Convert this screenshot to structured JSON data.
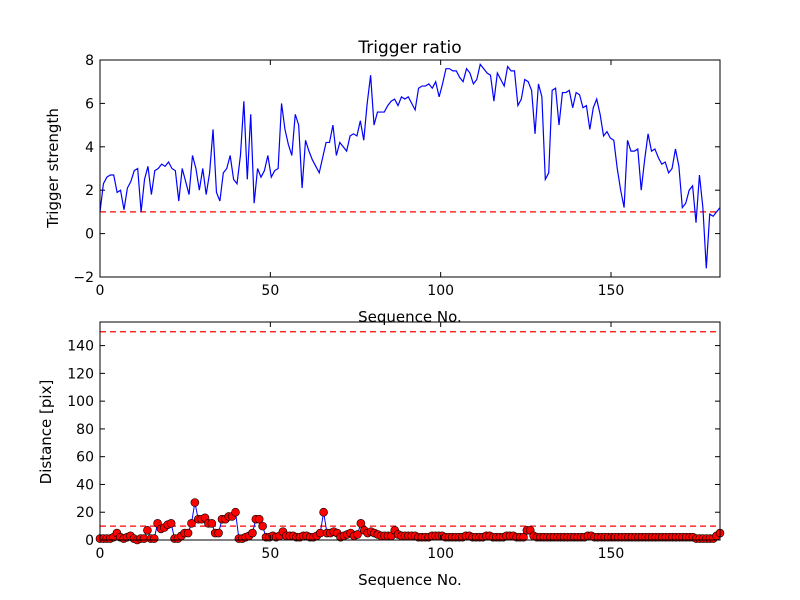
{
  "chart_data": [
    {
      "type": "line",
      "title": "Trigger ratio",
      "xlabel": "Sequence No.",
      "ylabel": "Trigger strength",
      "xlim": [
        0,
        182
      ],
      "ylim": [
        -2,
        8
      ],
      "xticks": [
        "0",
        "50",
        "100",
        "150"
      ],
      "yticks": [
        "−2",
        "0",
        "2",
        "4",
        "6",
        "8"
      ],
      "xtick_values": [
        0,
        50,
        100,
        150
      ],
      "ytick_values": [
        -2,
        0,
        2,
        4,
        6,
        8
      ],
      "threshold": 1,
      "colors": {
        "series": "#0000ff",
        "threshold": "#ff0000"
      },
      "series": [
        {
          "values": [
            1.0,
            2.3,
            2.6,
            2.7,
            2.7,
            1.9,
            2.0,
            1.1,
            2.1,
            2.4,
            2.9,
            3.0,
            1.0,
            2.5,
            3.1,
            1.8,
            2.9,
            3.0,
            3.2,
            3.1,
            3.3,
            3.0,
            2.9,
            1.5,
            3.0,
            2.4,
            1.8,
            3.6,
            3.0,
            2.0,
            3.0,
            1.8,
            2.8,
            4.8,
            1.9,
            1.5,
            2.8,
            3.0,
            3.6,
            2.5,
            2.3,
            3.6,
            6.1,
            2.5,
            5.5,
            1.4,
            3.0,
            2.6,
            2.9,
            3.6,
            2.6,
            2.9,
            3.0,
            6.0,
            4.8,
            4.1,
            3.6,
            5.5,
            5.0,
            2.1,
            4.3,
            3.8,
            3.4,
            3.1,
            2.8,
            3.5,
            4.2,
            4.2,
            5.0,
            3.6,
            4.2,
            4.0,
            3.8,
            4.5,
            4.6,
            4.5,
            5.2,
            4.3,
            6.0,
            7.3,
            5.0,
            5.6,
            5.6,
            5.6,
            5.9,
            6.1,
            6.2,
            5.9,
            6.3,
            6.2,
            6.3,
            6.0,
            5.7,
            6.7,
            6.8,
            6.8,
            6.9,
            6.7,
            7.0,
            6.3,
            6.9,
            7.6,
            7.6,
            7.5,
            7.5,
            7.2,
            7.0,
            7.6,
            7.4,
            6.9,
            7.1,
            7.8,
            7.6,
            7.4,
            7.3,
            6.1,
            7.4,
            7.1,
            6.8,
            7.7,
            7.5,
            7.5,
            5.9,
            6.2,
            7.1,
            7.0,
            6.6,
            4.6,
            6.9,
            6.3,
            2.5,
            2.8,
            6.6,
            6.7,
            5.0,
            6.5,
            6.5,
            6.6,
            5.8,
            6.5,
            6.4,
            5.8,
            5.9,
            4.8,
            5.8,
            6.2,
            5.5,
            4.5,
            4.7,
            4.4,
            4.3,
            3.0,
            2.0,
            1.2,
            4.3,
            3.8,
            3.8,
            3.9,
            2.0,
            3.4,
            4.6,
            3.8,
            3.9,
            3.5,
            3.2,
            3.3,
            2.8,
            3.0,
            3.9,
            3.1,
            1.2,
            1.4,
            2.0,
            2.2,
            0.5,
            2.7,
            1.2,
            -1.6,
            0.9,
            0.8,
            1.0,
            1.2
          ]
        }
      ]
    },
    {
      "type": "line",
      "title": "",
      "xlabel": "Sequence No.",
      "ylabel": "Distance [pix]",
      "xlim": [
        0,
        182
      ],
      "ylim": [
        0,
        157
      ],
      "xticks": [
        "0",
        "50",
        "100",
        "150"
      ],
      "yticks": [
        "0",
        "20",
        "40",
        "60",
        "80",
        "100",
        "120",
        "140"
      ],
      "xtick_values": [
        0,
        50,
        100,
        150
      ],
      "ytick_values": [
        0,
        20,
        40,
        60,
        80,
        100,
        120,
        140
      ],
      "thresholds": [
        150,
        10
      ],
      "colors": {
        "series": "#0000ff",
        "marker": "#ff0000",
        "threshold": "#ff0000"
      },
      "series": [
        {
          "values": [
            1,
            1,
            1,
            1,
            2,
            5,
            2,
            1,
            2,
            3,
            1,
            0,
            1,
            1,
            7,
            1,
            1,
            12,
            8,
            9,
            11,
            12,
            1,
            1,
            3,
            5,
            5,
            12,
            27,
            15,
            15,
            16,
            12,
            12,
            5,
            5,
            15,
            15,
            17,
            17,
            20,
            1,
            1,
            2,
            3,
            5,
            15,
            15,
            10,
            2,
            2,
            3,
            2,
            3,
            6,
            3,
            3,
            3,
            2,
            2,
            3,
            3,
            2,
            2,
            3,
            5,
            20,
            5,
            5,
            6,
            5,
            2,
            3,
            4,
            5,
            3,
            4,
            12,
            7,
            5,
            6,
            5,
            4,
            3,
            3,
            3,
            3,
            7,
            4,
            3,
            3,
            3,
            3,
            3,
            2,
            2,
            2,
            2,
            3,
            3,
            3,
            3,
            2,
            2,
            2,
            2,
            2,
            2,
            3,
            3,
            2,
            2,
            2,
            2,
            3,
            3,
            2,
            2,
            2,
            2,
            3,
            3,
            3,
            2,
            2,
            2,
            7,
            7,
            3,
            2,
            2,
            2,
            2,
            2,
            2,
            2,
            2,
            2,
            2,
            2,
            2,
            2,
            2,
            2,
            3,
            3,
            2,
            2,
            2,
            2,
            2,
            2,
            2,
            2,
            2,
            2,
            2,
            2,
            2,
            2,
            2,
            2,
            2,
            2,
            2,
            2,
            2,
            2,
            2,
            2,
            2,
            2,
            2,
            2,
            2,
            2,
            1,
            1,
            1,
            1,
            1,
            1,
            3,
            5
          ]
        }
      ]
    }
  ]
}
